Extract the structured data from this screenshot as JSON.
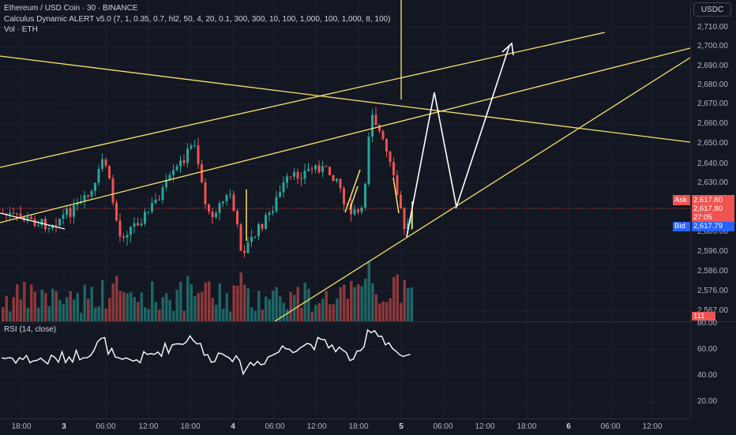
{
  "header": {
    "title": "Ethereum / USD Coin · 30 · BINANCE",
    "indicator": "Calculus Dynamic ALERT v5.0",
    "indicator_params": "(7, 1, 0.35, 0.7, hl2, 50, 4, 20, 0.1, 300, 300, 10, 100, 1,000, 100, 1,000, 8, 100)",
    "volume": "Vol · ETH"
  },
  "currency": "USDC",
  "price_axis": {
    "ticks": [
      "2,710.00",
      "2,700.00",
      "2,690.00",
      "2,680.00",
      "2,670.00",
      "2,660.00",
      "2,650.00",
      "2,640.00",
      "2,630.00",
      "2,606.00",
      "2,596.00",
      "2,586.00",
      "2,576.00",
      "2,567.00"
    ]
  },
  "quote": {
    "ask_label": "Ask",
    "ask_price": "2,617.80",
    "last_price": "2,617.80",
    "countdown": "27:05",
    "bid_label": "Bid",
    "bid_price": "2,617.79",
    "volume_badge": "111"
  },
  "rsi": {
    "label": "RSI (14, close)",
    "ticks": [
      "80.00",
      "60.00",
      "40.00",
      "20.00"
    ]
  },
  "time_axis": {
    "ticks": [
      {
        "label": "18:00",
        "bold": false
      },
      {
        "label": "3",
        "bold": true
      },
      {
        "label": "06:00",
        "bold": false
      },
      {
        "label": "12:00",
        "bold": false
      },
      {
        "label": "18:00",
        "bold": false
      },
      {
        "label": "4",
        "bold": true
      },
      {
        "label": "06:00",
        "bold": false
      },
      {
        "label": "12:00",
        "bold": false
      },
      {
        "label": "18:00",
        "bold": false
      },
      {
        "label": "5",
        "bold": true
      },
      {
        "label": "06:00",
        "bold": false
      },
      {
        "label": "12:00",
        "bold": false
      },
      {
        "label": "18:00",
        "bold": false
      },
      {
        "label": "6",
        "bold": true
      },
      {
        "label": "06:00",
        "bold": false
      },
      {
        "label": "12:00",
        "bold": false
      }
    ]
  },
  "colors": {
    "background": "#131722",
    "up": "#26a69a",
    "down": "#ef5350",
    "drawing": "#f7e36b",
    "path": "#ffffff",
    "bid": "#2962ff"
  }
}
